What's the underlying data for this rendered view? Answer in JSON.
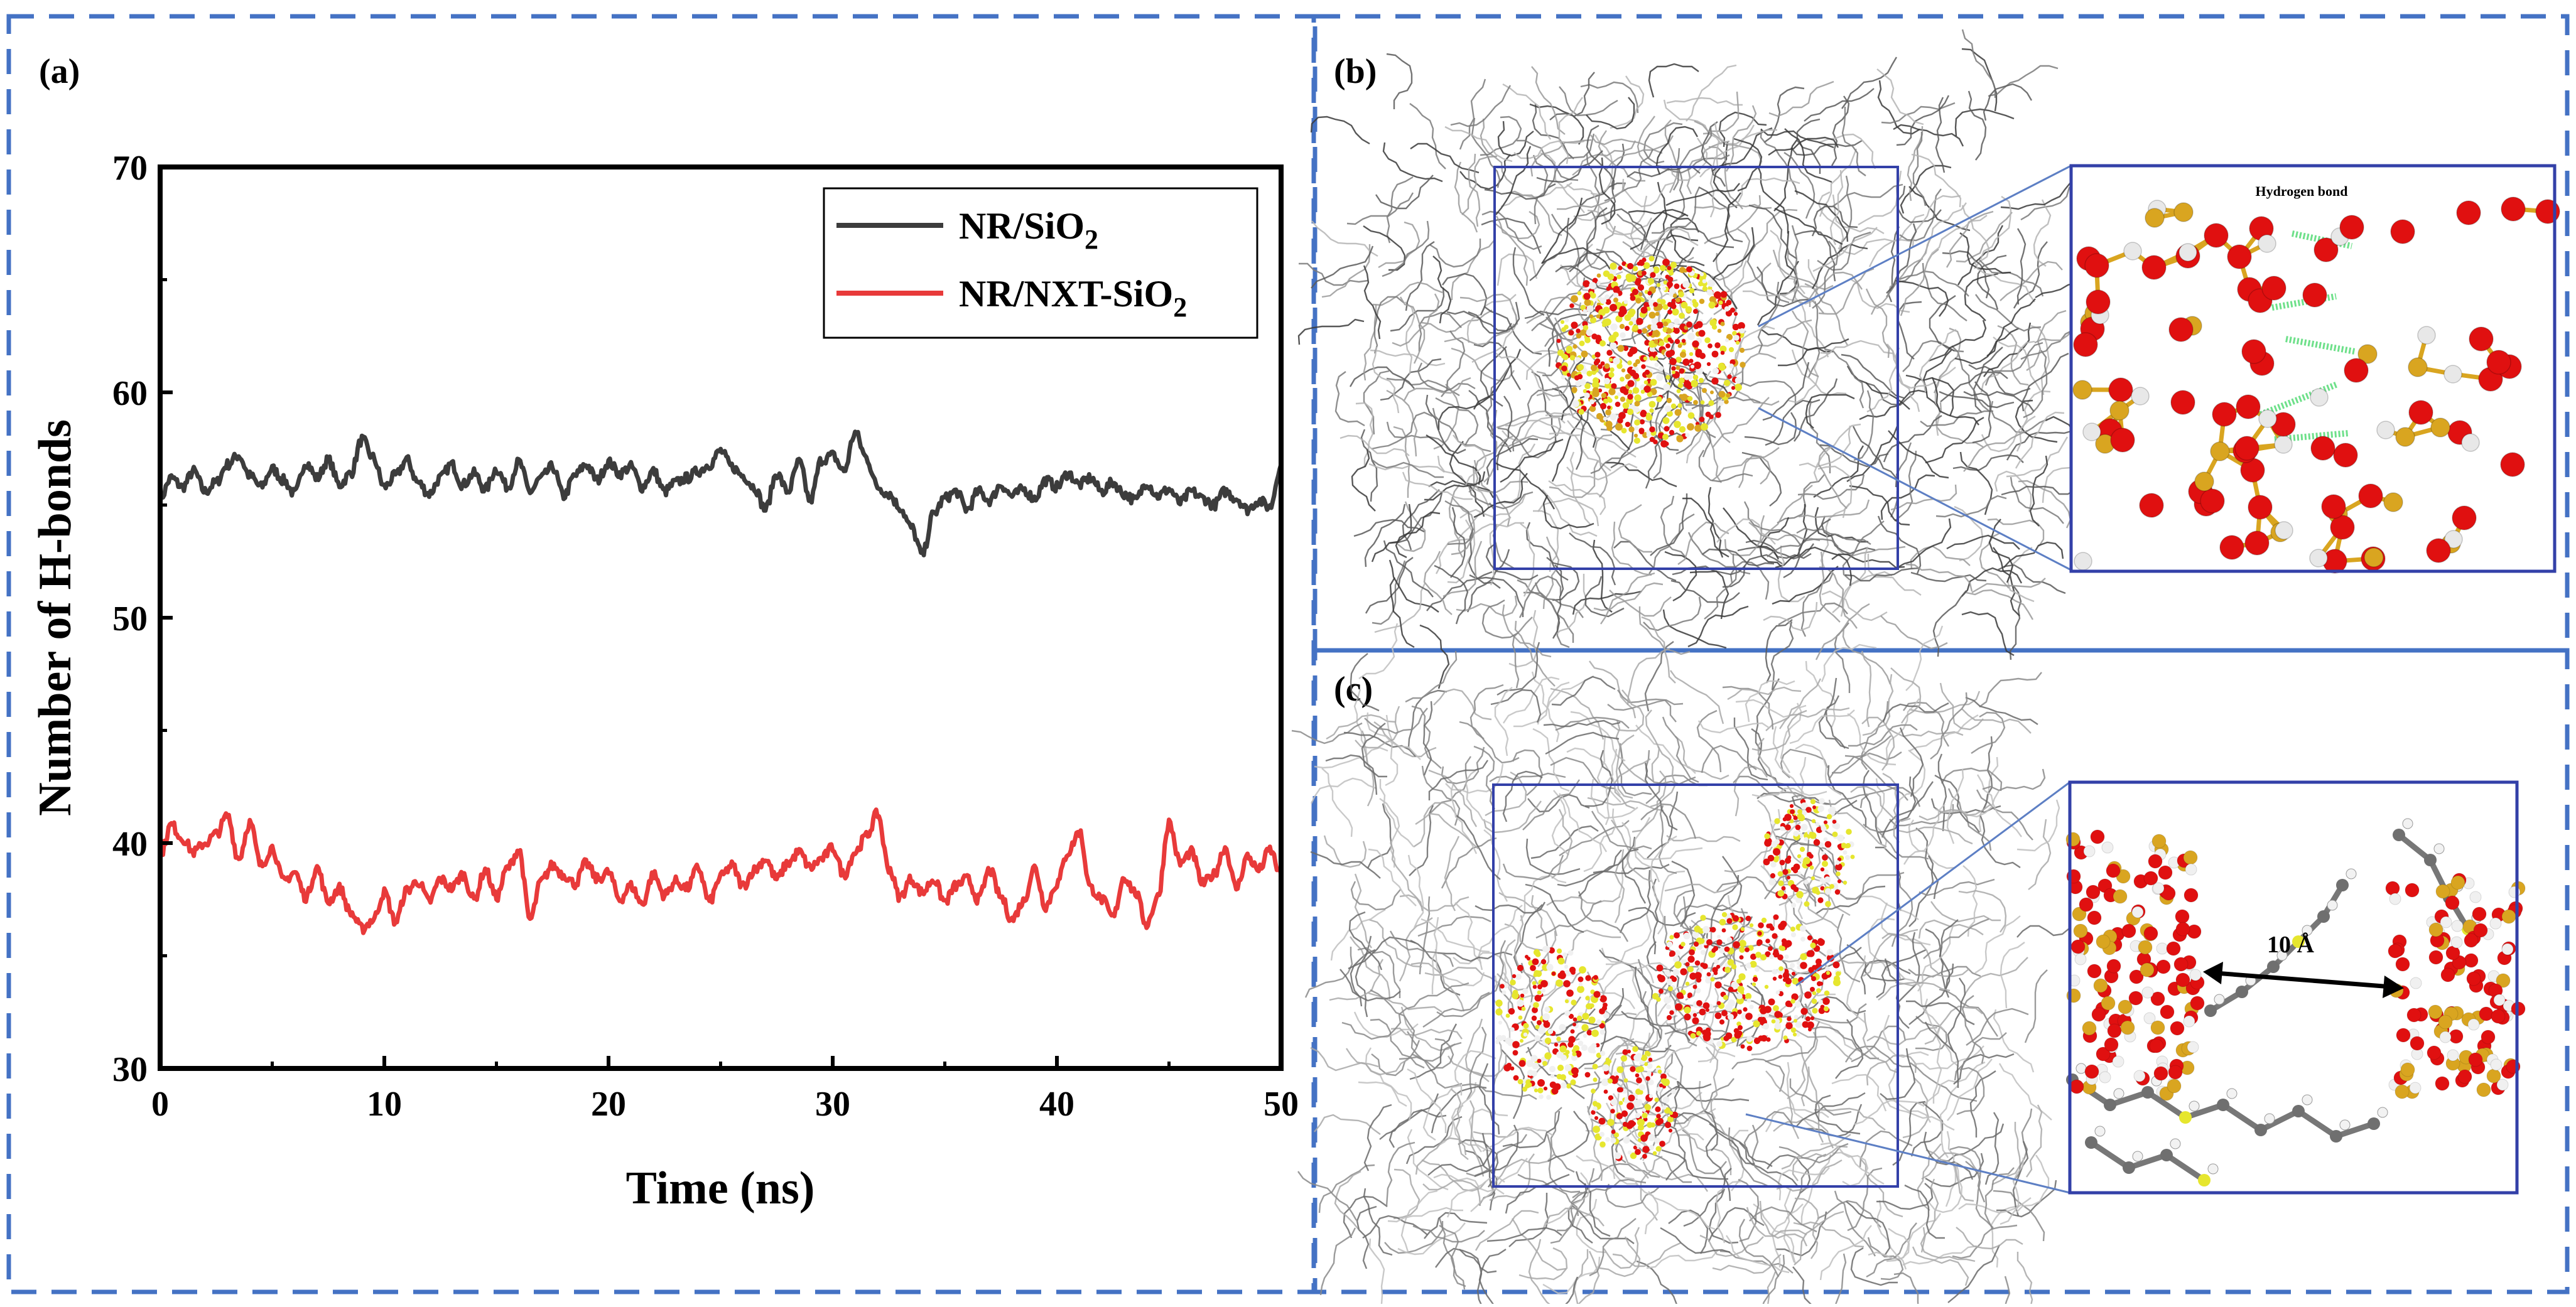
{
  "panels": {
    "a": {
      "label": "(a)"
    },
    "b": {
      "label": "(b)",
      "inset_label": "Hydrogen bond"
    },
    "c": {
      "label": "(c)",
      "inset_label": "10 Å"
    }
  },
  "colors": {
    "frame_dash": "#4472C4",
    "box_blue": "#3340A8",
    "series_nr": "#3C3C3C",
    "series_nxt": "#E83A3A",
    "oxygen": "#E01010",
    "silicon": "#D9A520",
    "hydrogen": "#E8E8E8",
    "carbon": "#6E6E6E",
    "sulfur": "#E6E62E",
    "hbond": "#6EE08A"
  },
  "chart_data": {
    "type": "line",
    "xlabel": "Time (ns)",
    "ylabel": "Number of H-bonds",
    "xlim": [
      0,
      50
    ],
    "ylim": [
      30,
      70
    ],
    "xticks": [
      0,
      10,
      20,
      30,
      40,
      50
    ],
    "yticks": [
      30,
      40,
      50,
      60,
      70
    ],
    "legend_position": "top-right",
    "series": [
      {
        "name": "NR/SiO2",
        "legend_main": "NR/SiO",
        "legend_sub": "2",
        "color": "#3C3C3C",
        "x": [
          0,
          0.5,
          1,
          1.5,
          2,
          2.5,
          3,
          3.5,
          4,
          4.5,
          5,
          5.5,
          6,
          6.5,
          7,
          7.5,
          8,
          8.5,
          9,
          9.5,
          10,
          10.5,
          11,
          11.5,
          12,
          12.5,
          13,
          13.5,
          14,
          14.5,
          15,
          15.5,
          16,
          16.5,
          17,
          17.5,
          18,
          18.5,
          19,
          19.5,
          20,
          20.5,
          21,
          21.5,
          22,
          22.5,
          23,
          23.5,
          24,
          24.5,
          25,
          25.5,
          26,
          26.5,
          27,
          27.5,
          28,
          28.5,
          29,
          29.5,
          30,
          30.5,
          31,
          31.5,
          32,
          32.5,
          33,
          33.5,
          34,
          34.5,
          35,
          35.5,
          36,
          36.5,
          37,
          37.5,
          38,
          38.5,
          39,
          39.5,
          40,
          40.5,
          41,
          41.5,
          42,
          42.5,
          43,
          43.5,
          44,
          44.5,
          45,
          45.5,
          46,
          46.5,
          47,
          47.5,
          48,
          48.5,
          49,
          49.5,
          50
        ],
        "values": [
          55.3,
          56.2,
          55.8,
          56.5,
          55.6,
          56.0,
          56.8,
          57.2,
          56.3,
          55.8,
          56.6,
          56.1,
          55.5,
          56.9,
          56.2,
          57.0,
          55.9,
          56.4,
          57.9,
          57.1,
          55.8,
          56.3,
          57.0,
          56.0,
          55.5,
          56.2,
          56.8,
          55.9,
          56.4,
          55.7,
          56.6,
          55.8,
          56.9,
          55.6,
          56.2,
          56.7,
          55.4,
          56.3,
          56.8,
          56.1,
          56.9,
          56.4,
          56.7,
          55.8,
          56.5,
          55.6,
          56.0,
          56.2,
          56.5,
          56.8,
          57.4,
          56.7,
          56.3,
          55.8,
          54.8,
          56.4,
          55.6,
          56.9,
          55.2,
          57.0,
          57.2,
          56.5,
          58.2,
          57.1,
          55.8,
          55.5,
          54.9,
          54.0,
          52.8,
          54.6,
          55.3,
          55.6,
          54.8,
          55.6,
          55.2,
          55.9,
          55.4,
          55.7,
          55.3,
          56.1,
          55.8,
          56.4,
          55.9,
          56.2,
          55.6,
          56.0,
          55.5,
          55.2,
          56.0,
          55.4,
          55.7,
          55.1,
          55.6,
          55.3,
          55.0,
          55.6,
          55.3,
          54.8,
          55.2,
          54.9,
          56.8
        ],
        "smooth": true
      },
      {
        "name": "NR/NXT-SiO2",
        "legend_main": "NR/NXT-SiO",
        "legend_sub": "2",
        "color": "#E83A3A",
        "x": [
          0,
          0.5,
          1,
          1.5,
          2,
          2.5,
          3,
          3.5,
          4,
          4.5,
          5,
          5.5,
          6,
          6.5,
          7,
          7.5,
          8,
          8.5,
          9,
          9.5,
          10,
          10.5,
          11,
          11.5,
          12,
          12.5,
          13,
          13.5,
          14,
          14.5,
          15,
          15.5,
          16,
          16.5,
          17,
          17.5,
          18,
          18.5,
          19,
          19.5,
          20,
          20.5,
          21,
          21.5,
          22,
          22.5,
          23,
          23.5,
          24,
          24.5,
          25,
          25.5,
          26,
          26.5,
          27,
          27.5,
          28,
          28.5,
          29,
          29.5,
          30,
          30.5,
          31,
          31.5,
          32,
          32.5,
          33,
          33.5,
          34,
          34.5,
          35,
          35.5,
          36,
          36.5,
          37,
          37.5,
          38,
          38.5,
          39,
          39.5,
          40,
          40.5,
          41,
          41.5,
          42,
          42.5,
          43,
          43.5,
          44,
          44.5,
          45,
          45.5,
          46,
          46.5,
          47,
          47.5,
          48,
          48.5,
          49,
          49.5,
          50
        ],
        "values": [
          39.5,
          40.8,
          40.2,
          39.6,
          40.0,
          40.4,
          41.2,
          39.3,
          40.9,
          39.0,
          39.8,
          38.3,
          38.7,
          37.6,
          38.9,
          37.4,
          38.0,
          36.9,
          36.2,
          36.6,
          37.8,
          36.5,
          37.9,
          38.3,
          37.4,
          38.4,
          38.0,
          38.6,
          37.5,
          38.8,
          37.6,
          38.9,
          39.7,
          36.6,
          38.3,
          39.0,
          38.6,
          38.2,
          39.1,
          38.4,
          38.7,
          37.5,
          38.1,
          37.3,
          38.6,
          37.7,
          38.3,
          38.0,
          38.9,
          37.4,
          38.5,
          39.0,
          38.1,
          38.8,
          39.3,
          38.4,
          39.1,
          39.6,
          38.9,
          39.3,
          39.8,
          38.6,
          39.6,
          40.3,
          41.3,
          38.9,
          37.6,
          38.4,
          37.8,
          38.4,
          37.4,
          38.1,
          38.4,
          37.5,
          38.8,
          37.6,
          36.6,
          37.4,
          38.9,
          37.2,
          38.2,
          39.6,
          40.5,
          38.0,
          37.5,
          36.7,
          38.5,
          37.8,
          36.4,
          37.6,
          40.9,
          39.1,
          39.6,
          38.2,
          38.6,
          39.8,
          38.0,
          39.4,
          38.8,
          39.7,
          38.6
        ],
        "smooth": true
      }
    ]
  }
}
